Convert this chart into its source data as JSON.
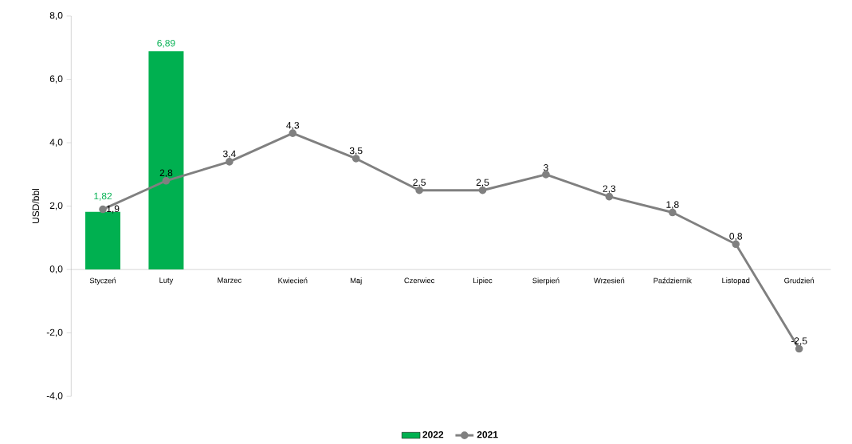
{
  "chart_data": {
    "type": "bar",
    "ylabel": "USD/bbl",
    "categories": [
      "Styczeń",
      "Luty",
      "Marzec",
      "Kwiecień",
      "Maj",
      "Czerwiec",
      "Lipiec",
      "Sierpień",
      "Wrzesień",
      "Październik",
      "Listopad",
      "Grudzień"
    ],
    "series": [
      {
        "name": "2022",
        "color": "#00b050",
        "values": [
          1.82,
          6.89,
          null,
          null,
          null,
          null,
          null,
          null,
          null,
          null,
          null,
          null
        ],
        "value_labels": [
          "1,82",
          "6,89",
          null,
          null,
          null,
          null,
          null,
          null,
          null,
          null,
          null,
          null
        ]
      },
      {
        "name": "2021",
        "type": "line",
        "color": "#808080",
        "marker": "circle",
        "values": [
          1.9,
          2.8,
          3.4,
          4.3,
          3.5,
          2.5,
          2.5,
          3,
          2.3,
          1.8,
          0.8,
          -2.5
        ],
        "value_labels": [
          "1,9",
          "2,8",
          "3,4",
          "4,3",
          "3,5",
          "2,5",
          "2,5",
          "3",
          "2,3",
          "1,8",
          "0,8",
          "-2,5"
        ]
      }
    ],
    "ylim": [
      -4,
      8
    ],
    "yticks": [
      {
        "value": -4,
        "label": "-4,0"
      },
      {
        "value": -2,
        "label": "-2,0"
      },
      {
        "value": 0,
        "label": "0,0"
      },
      {
        "value": 2,
        "label": "2,0"
      },
      {
        "value": 4,
        "label": "4,0"
      },
      {
        "value": 6,
        "label": "6,0"
      },
      {
        "value": 8,
        "label": "8,0"
      }
    ],
    "grid": false,
    "legend": "bottom"
  }
}
